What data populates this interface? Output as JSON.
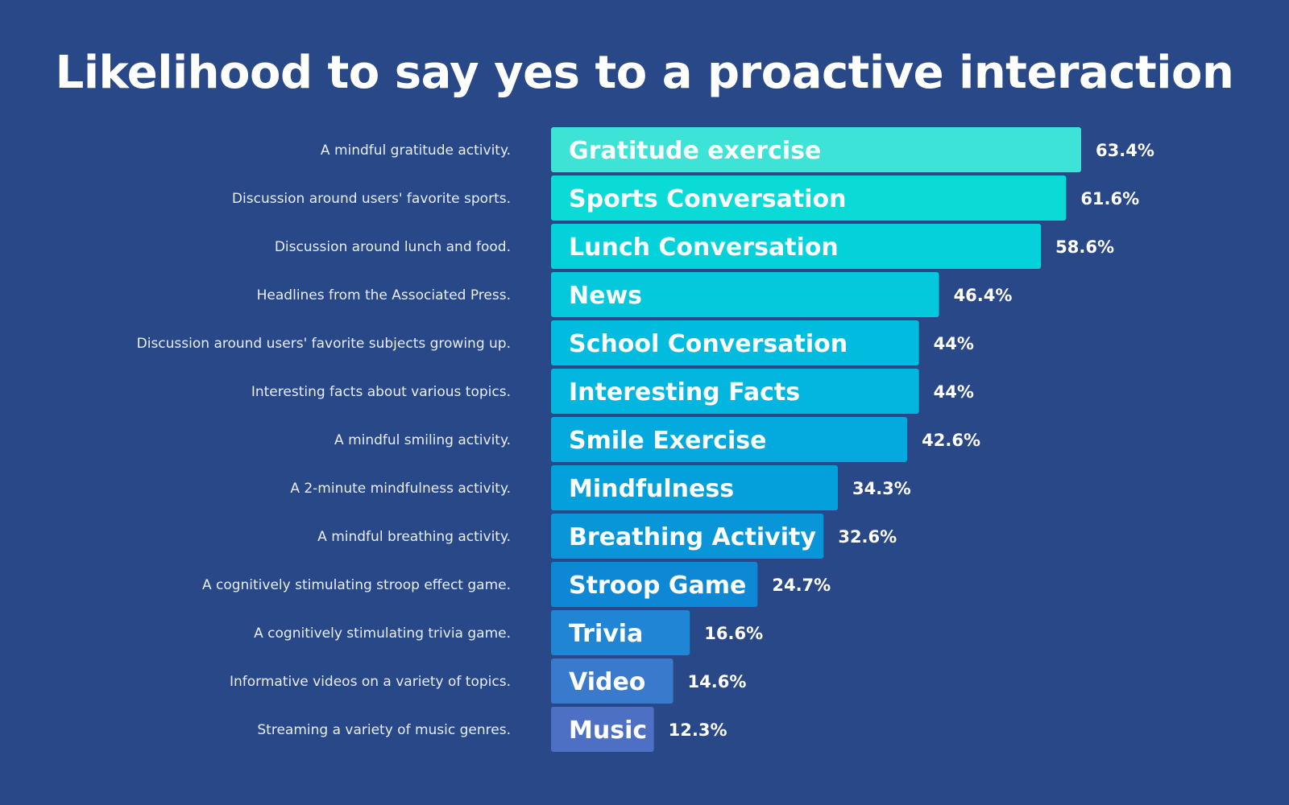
{
  "chart_data": {
    "type": "bar",
    "orientation": "horizontal",
    "title": "Likelihood to say yes to a proactive interaction",
    "xlim": [
      0,
      100
    ],
    "grid": false,
    "legend": "none",
    "categories": [
      "Gratitude exercise",
      "Sports Conversation",
      "Lunch Conversation",
      "News",
      "School Conversation",
      "Interesting Facts",
      "Smile Exercise",
      "Mindfulness",
      "Breathing Activity",
      "Stroop Game",
      "Trivia",
      "Video",
      "Music"
    ],
    "descriptions": [
      "A mindful gratitude activity.",
      "Discussion around users' favorite sports.",
      "Discussion around lunch and food.",
      "Headlines from the Associated Press.",
      "Discussion around users' favorite subjects growing up.",
      "Interesting facts about various topics.",
      "A mindful smiling activity.",
      "A 2-minute mindfulness activity.",
      "A mindful breathing activity.",
      "A cognitively stimulating stroop effect game.",
      "A cognitively stimulating trivia game.",
      "Informative videos on a variety of topics.",
      "Streaming a variety of music genres."
    ],
    "values": [
      63.4,
      61.6,
      58.6,
      46.4,
      44,
      44,
      42.6,
      34.3,
      32.6,
      24.7,
      16.6,
      14.6,
      12.3
    ],
    "value_labels": [
      "63.4%",
      "61.6%",
      "58.6%",
      "46.4%",
      "44%",
      "44%",
      "42.6%",
      "34.3%",
      "32.6%",
      "24.7%",
      "16.6%",
      "14.6%",
      "12.3%"
    ],
    "colors": [
      "#3ce3d6",
      "#0adbd6",
      "#04d2da",
      "#04c9dc",
      "#02bcdf",
      "#03b6df",
      "#04aade",
      "#04a0dc",
      "#0896d9",
      "#0e87d5",
      "#2085d4",
      "#3a7acd",
      "#4d70c5"
    ]
  }
}
